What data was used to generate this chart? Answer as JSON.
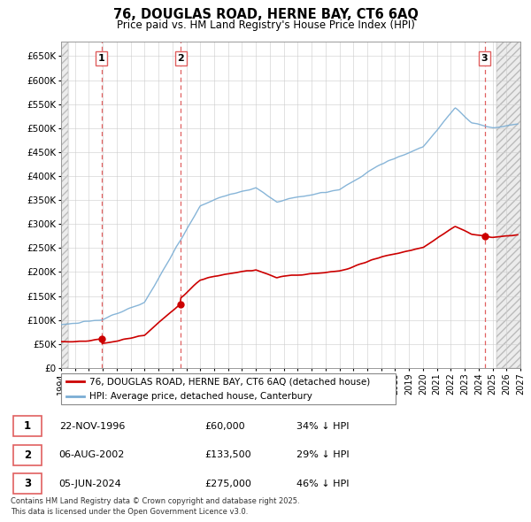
{
  "title": "76, DOUGLAS ROAD, HERNE BAY, CT6 6AQ",
  "subtitle": "Price paid vs. HM Land Registry's House Price Index (HPI)",
  "xlim_start": 1994.0,
  "xlim_end": 2027.0,
  "ylim": [
    0,
    680000
  ],
  "yticks": [
    0,
    50000,
    100000,
    150000,
    200000,
    250000,
    300000,
    350000,
    400000,
    450000,
    500000,
    550000,
    600000,
    650000
  ],
  "ytick_labels": [
    "£0",
    "£50K",
    "£100K",
    "£150K",
    "£200K",
    "£250K",
    "£300K",
    "£350K",
    "£400K",
    "£450K",
    "£500K",
    "£550K",
    "£600K",
    "£650K"
  ],
  "hpi_color": "#7aadd4",
  "price_color": "#cc0000",
  "vline_color": "#e06060",
  "transactions": [
    {
      "date": 1996.9,
      "price": 60000,
      "label": "1"
    },
    {
      "date": 2002.6,
      "price": 133500,
      "label": "2"
    },
    {
      "date": 2024.43,
      "price": 275000,
      "label": "3"
    }
  ],
  "table_entries": [
    {
      "num": "1",
      "date": "22-NOV-1996",
      "price": "£60,000",
      "note": "34% ↓ HPI"
    },
    {
      "num": "2",
      "date": "06-AUG-2002",
      "price": "£133,500",
      "note": "29% ↓ HPI"
    },
    {
      "num": "3",
      "date": "05-JUN-2024",
      "price": "£275,000",
      "note": "46% ↓ HPI"
    }
  ],
  "legend_entries": [
    "76, DOUGLAS ROAD, HERNE BAY, CT6 6AQ (detached house)",
    "HPI: Average price, detached house, Canterbury"
  ],
  "footnote": "Contains HM Land Registry data © Crown copyright and database right 2025.\nThis data is licensed under the Open Government Licence v3.0.",
  "background_color": "#ffffff",
  "grid_color": "#cccccc"
}
